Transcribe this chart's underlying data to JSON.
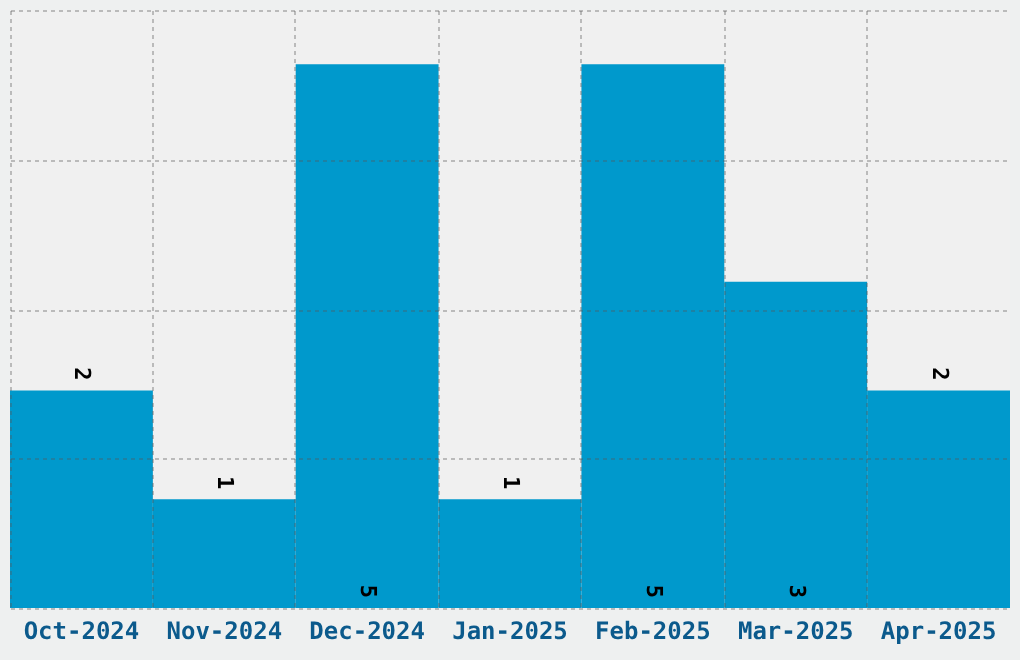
{
  "chart_data": {
    "type": "bar",
    "categories": [
      "Oct-2024",
      "Nov-2024",
      "Dec-2024",
      "Jan-2025",
      "Feb-2025",
      "Mar-2025",
      "Apr-2025"
    ],
    "values": [
      2,
      1,
      5,
      1,
      5,
      3,
      2
    ],
    "color": "#0099cc",
    "ylim": [
      0,
      5.5
    ],
    "yticks": [
      {
        "value": 0,
        "label": null
      },
      {
        "value": 1.375,
        "label": null
      },
      {
        "value": 2.75,
        "label": null
      },
      {
        "value": 4.125,
        "label": null
      },
      {
        "value": 5.5,
        "label": null
      }
    ],
    "grid": true,
    "tick_labels": "x",
    "data_labels": true
  }
}
